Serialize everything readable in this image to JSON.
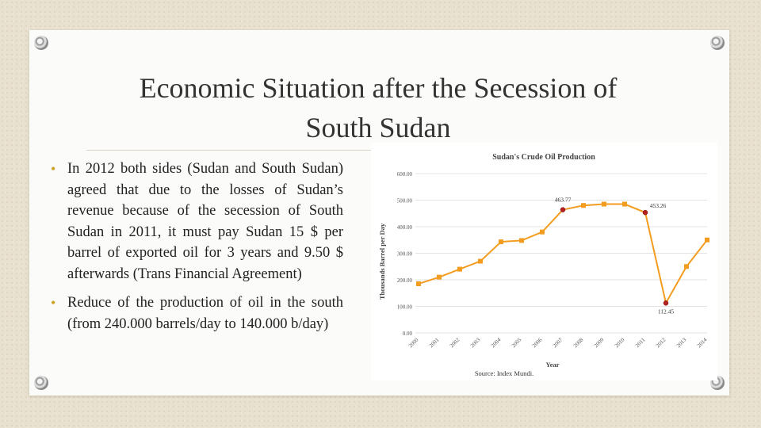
{
  "slide": {
    "title_line1": "Economic Situation after the Secession of",
    "title_line2": "South Sudan",
    "bullets": [
      "In 2012 both sides (Sudan and South Sudan) agreed that due to the losses of Sudan’s revenue because of the secession of South Sudan in 2011, it must pay Sudan 15 $ per barrel of exported oil for 3 years and 9.50 $ afterwards (Trans Financial Agreement)",
      "Reduce of the production of oil in the south (from 240.000 barrels/day to 140.000 b/day)"
    ]
  },
  "colors": {
    "line": "#f39c1f",
    "highlight": "#b52020",
    "bullet": "#c9a227"
  },
  "chart_data": {
    "type": "line",
    "title": "Sudan's Crude Oil Production",
    "xlabel": "Year",
    "ylabel": "Thousands Barrel per Day",
    "source": "Source: Index Mundi.",
    "ylim": [
      0,
      600
    ],
    "yticks": [
      "0.00",
      "100.00",
      "200.00",
      "300.00",
      "400.00",
      "500.00",
      "600.00"
    ],
    "x": [
      "2000",
      "2001",
      "2002",
      "2003",
      "2004",
      "2005",
      "2006",
      "2007",
      "2008",
      "2009",
      "2010",
      "2011",
      "2012",
      "2013",
      "2014"
    ],
    "values": [
      185,
      210,
      240,
      270,
      343,
      348,
      380,
      463.77,
      480,
      485,
      485,
      453.26,
      112.45,
      250,
      350
    ],
    "annotations": [
      {
        "index": 7,
        "label": "463.77"
      },
      {
        "index": 11,
        "label": "453.26"
      },
      {
        "index": 12,
        "label": "112.45"
      }
    ],
    "grid": true
  }
}
